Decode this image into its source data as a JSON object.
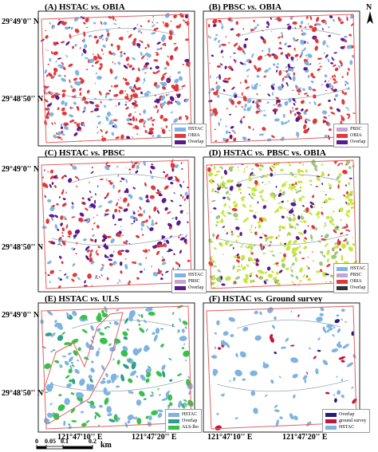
{
  "north_label": "N",
  "lat_labels": {
    "top": "29°49'0'' N",
    "bottom": "29°48'50'' N"
  },
  "lon_labels": {
    "left": "121°47'10'' E",
    "right": "121°47'20'' E"
  },
  "scale_bar": {
    "ticks": [
      "0",
      "0.05",
      "0.1",
      "0.2"
    ],
    "unit": "km"
  },
  "colors": {
    "hstac": "#7fb3e0",
    "obia": "#e0393a",
    "pbsc": "#c5a3d4",
    "overlap": "#5b1a8a",
    "als": "#39c04a",
    "ground": "#c4163d",
    "green_overlap": "#9ec67d",
    "lime": "#c8e63c",
    "frame": "#e36060"
  },
  "panels": [
    {
      "id": "A",
      "title_prefix": "(A) HSTAC ",
      "title_vs": "vs.",
      "title_suffix": " OBIA",
      "legend": [
        {
          "label": "HSTAC",
          "color": "#7fb3e0"
        },
        {
          "label": "OBIA",
          "color": "#e0393a"
        },
        {
          "label": "Overlap",
          "color": "#5b1a8a"
        }
      ]
    },
    {
      "id": "B",
      "title_prefix": "(B) PBSC ",
      "title_vs": "vs.",
      "title_suffix": " OBIA",
      "legend": [
        {
          "label": "PBSC",
          "color": "#c5a3d4"
        },
        {
          "label": "OBIA",
          "color": "#e0393a"
        },
        {
          "label": "Overlap",
          "color": "#5b1a8a"
        }
      ]
    },
    {
      "id": "C",
      "title_prefix": "(C) HSTAC ",
      "title_vs": "vs.",
      "title_suffix": " PBSC",
      "legend": [
        {
          "label": "HSTAC",
          "color": "#7fb3e0"
        },
        {
          "label": "PBSC",
          "color": "#c5a3d4"
        },
        {
          "label": "Overlap",
          "color": "#5b1a8a"
        }
      ]
    },
    {
      "id": "D",
      "title_prefix": "(D) HSTAC ",
      "title_vs": "vs.",
      "title_suffix": " PBSC vs. OBIA",
      "legend": [
        {
          "label": "HSTAC",
          "color": "#7fb3e0"
        },
        {
          "label": "PBSC",
          "color": "#c5a3d4"
        },
        {
          "label": "OBIA",
          "color": "#e0393a"
        },
        {
          "label": "Overlap",
          "color": "#333333"
        }
      ]
    },
    {
      "id": "E",
      "title_prefix": "(E) HSTAC ",
      "title_vs": "vs.",
      "title_suffix": " ULS",
      "legend": [
        {
          "label": "HSTAC",
          "color": "#7fb3e0"
        },
        {
          "label": "Overlap",
          "color": "#2f9e8c"
        },
        {
          "label": "ALS-lbo",
          "color": "#39c04a"
        }
      ]
    },
    {
      "id": "F",
      "title_prefix": "(F) HSTAC ",
      "title_vs": "vs.",
      "title_suffix": " Ground survey",
      "legend": [
        {
          "label": "Overlap",
          "color": "#2b1a7a"
        },
        {
          "label": "ground survey",
          "color": "#c4163d"
        },
        {
          "label": "HSTAC",
          "color": "#7fb3e0"
        }
      ]
    }
  ]
}
